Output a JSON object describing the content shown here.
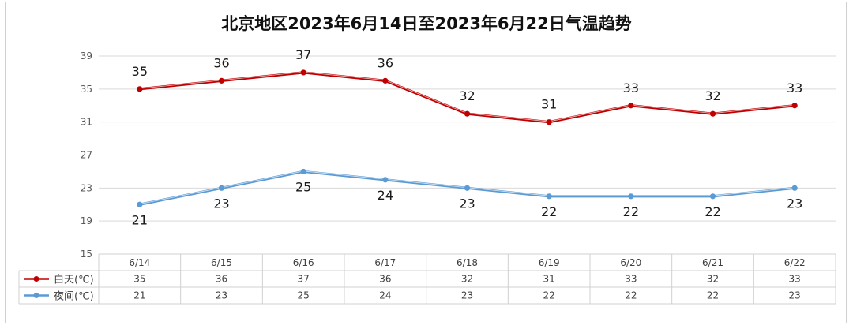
{
  "chart_data": {
    "type": "line",
    "title": "北京地区2023年6月14日至2023年6月22日气温趋势",
    "categories": [
      "6/14",
      "6/15",
      "6/16",
      "6/17",
      "6/18",
      "6/19",
      "6/20",
      "6/21",
      "6/22"
    ],
    "y_ticks": [
      "15",
      "19",
      "23",
      "27",
      "31",
      "35",
      "39"
    ],
    "ylim": [
      15,
      39
    ],
    "grid": true,
    "legend_placement": "data-table",
    "series": [
      {
        "name": "白天(℃)",
        "values": [
          35,
          36,
          37,
          36,
          32,
          31,
          33,
          32,
          33
        ],
        "color": "#c00000"
      },
      {
        "name": "夜间(℃)",
        "values": [
          21,
          23,
          25,
          24,
          23,
          22,
          22,
          22,
          23
        ],
        "color": "#5b9bd5"
      }
    ]
  }
}
